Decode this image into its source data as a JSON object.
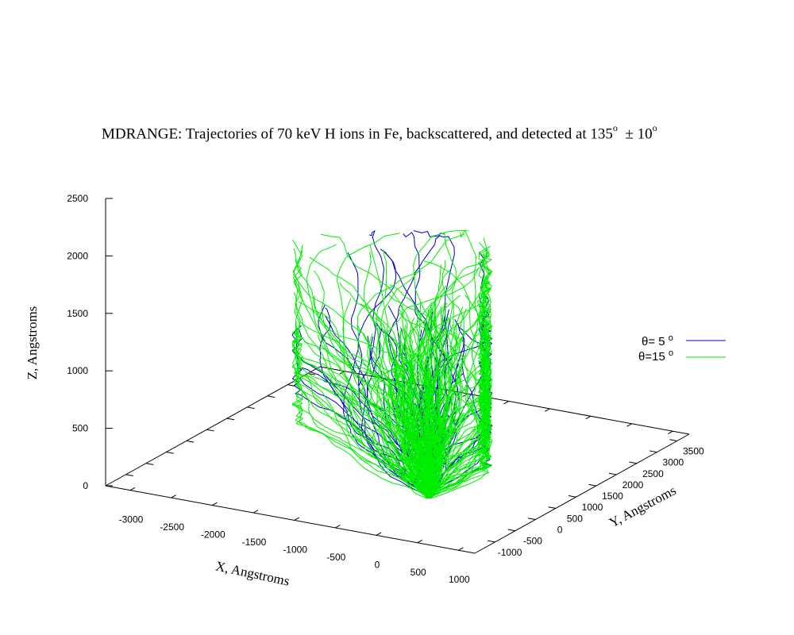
{
  "chart_data": {
    "type": "line",
    "title_parts": {
      "main": "MDRANGE: Trajectories of 70 keV H ions in Fe, backscattered, and detected at 135",
      "deg1": "o",
      "pm": "±",
      "tol": "10",
      "deg2": "o"
    },
    "xlabel": "X, Angstroms",
    "ylabel": "Y, Angstroms",
    "zlabel": "Z, Angstroms",
    "xlim": [
      -3300,
      1200
    ],
    "ylim": [
      -1500,
      3800
    ],
    "zlim": [
      0,
      2500
    ],
    "x_ticks": [
      "-3000",
      "-2500",
      "-2000",
      "-1500",
      "-1000",
      "-500",
      "0",
      "500",
      "1000"
    ],
    "y_ticks": [
      "-1000",
      "-500",
      "0",
      "500",
      "1000",
      "1500",
      "2000",
      "2500",
      "3000",
      "3500"
    ],
    "z_ticks": [
      "0",
      "500",
      "1000",
      "1500",
      "2000",
      "2500"
    ],
    "legend_position": "right",
    "series": [
      {
        "name": "θ= 5 ",
        "name_sup": "o",
        "color": "#0000c0",
        "trajectories": 30
      },
      {
        "name": "θ=15 ",
        "name_sup": "o",
        "color": "#00ee00",
        "trajectories": 120
      }
    ]
  },
  "colors": {
    "axis": "#000000",
    "series1": "#0000c0",
    "series2": "#00ee00"
  }
}
